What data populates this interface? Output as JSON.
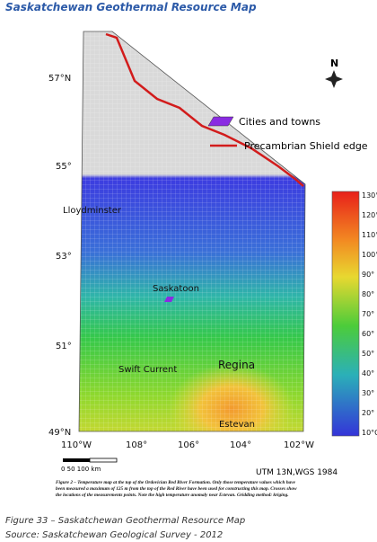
{
  "header": {
    "title": "Saskatchewan Geothermal Resource Map"
  },
  "map": {
    "latitude_labels": [
      "57°N",
      "55°",
      "53°",
      "51°",
      "49°N"
    ],
    "longitude_labels": [
      "110°W",
      "108°",
      "106°",
      "104°",
      "102°W"
    ],
    "legend": [
      "Cities and towns",
      "Precambrian Shield edge"
    ],
    "colorbar_labels": [
      "130°C",
      "120°",
      "110°",
      "100°",
      "90°",
      "80°",
      "70°",
      "60°",
      "50°",
      "40°",
      "30°",
      "20°",
      "10°C"
    ],
    "cities": [
      "Lloydminster",
      "Saskatoon",
      "Swift Current",
      "Regina",
      "Estevan"
    ],
    "north": "N",
    "scale": "0   50  100 km",
    "projection": "UTM 13N,WGS 1984",
    "caption_lines": [
      "Figure 2 – Temperature map at the top of the Ordovician Red River Formation. Only those temperature values which have",
      "been measured a maximum of 125 m from the top of the Red River have been used for constructing this map. Crosses show",
      "the locations of the measurements points. Note the high temperature anomaly near Estevan. Gridding method: kriging."
    ]
  },
  "footer": {
    "figure": "Figure 33 – Saskatchewan Geothermal Resource Map",
    "source": "Source: Saskatchewan Geological Survey - 2012"
  }
}
